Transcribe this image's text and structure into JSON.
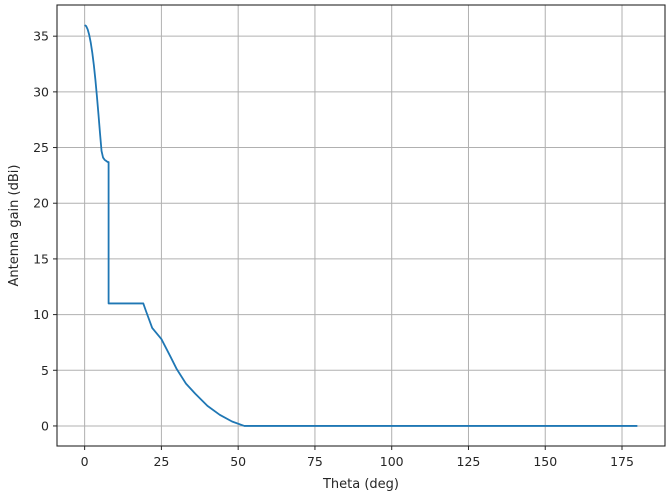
{
  "chart_data": {
    "type": "line",
    "title": "",
    "xlabel": "Theta (deg)",
    "ylabel": "Antenna gain (dBi)",
    "xlim": [
      -9,
      189
    ],
    "ylim": [
      -1.8,
      37.8
    ],
    "xticks": [
      0,
      25,
      50,
      75,
      100,
      125,
      150,
      175
    ],
    "yticks": [
      0,
      5,
      10,
      15,
      20,
      25,
      30,
      35
    ],
    "xtick_labels": [
      "0",
      "25",
      "50",
      "75",
      "100",
      "125",
      "150",
      "175"
    ],
    "ytick_labels": [
      "0",
      "5",
      "10",
      "15",
      "20",
      "25",
      "30",
      "35"
    ],
    "grid": true,
    "series_color": "#1f77b4",
    "series": [
      {
        "x": [
          0,
          0.5,
          1,
          1.5,
          2,
          2.5,
          3,
          3.5,
          4,
          4.5,
          5,
          5.5,
          6,
          6.5,
          7,
          7.5,
          7.8,
          7.8,
          10,
          15,
          19.1,
          20,
          22,
          25,
          28,
          30,
          33,
          36,
          40,
          44,
          48,
          52,
          60,
          80,
          100,
          120,
          140,
          160,
          180
        ],
        "values": [
          36,
          35.9,
          35.6,
          35.1,
          34.4,
          33.5,
          32.4,
          31.1,
          29.6,
          28.0,
          26.3,
          24.7,
          24.1,
          23.9,
          23.8,
          23.7,
          23.7,
          11,
          11,
          11,
          11,
          10.3,
          8.8,
          7.8,
          6.2,
          5.1,
          3.8,
          2.9,
          1.8,
          1.0,
          0.4,
          0,
          0,
          0,
          0,
          0,
          0,
          0,
          0
        ]
      }
    ]
  }
}
